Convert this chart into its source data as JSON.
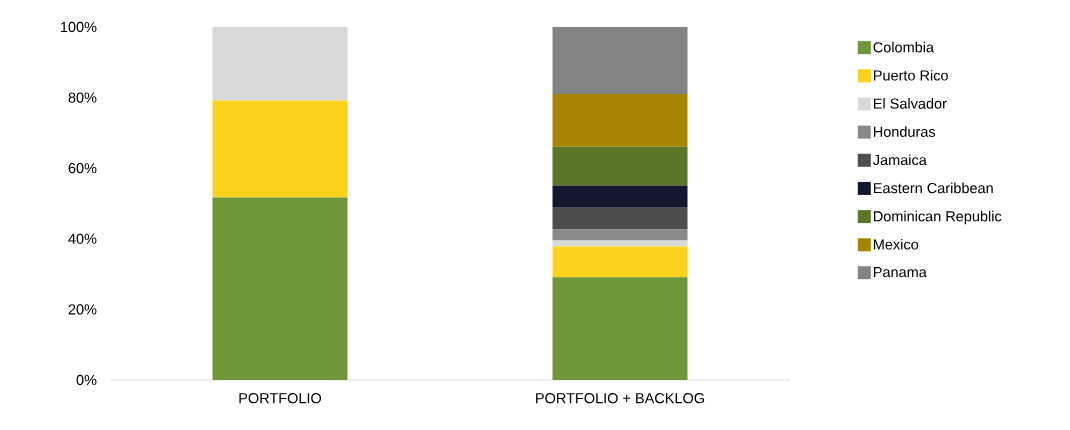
{
  "chart_data": {
    "type": "bar",
    "stacked": true,
    "categories": [
      "PORTFOLIO",
      "PORTFOLIO + BACKLOG"
    ],
    "series": [
      {
        "name": "Colombia",
        "color": "#70963a",
        "values": [
          51.7,
          29.1
        ]
      },
      {
        "name": "Puerto Rico",
        "color": "#fcd21c",
        "values": [
          27.5,
          8.7
        ]
      },
      {
        "name": "El Salvador",
        "color": "#d9d9d9",
        "values": [
          20.8,
          1.7
        ]
      },
      {
        "name": "Honduras",
        "color": "#898989",
        "values": [
          0,
          3.1
        ]
      },
      {
        "name": "Jamaica",
        "color": "#4d4d4d",
        "values": [
          0,
          6.2
        ]
      },
      {
        "name": "Eastern Caribbean",
        "color": "#14182e",
        "values": [
          0,
          6.3
        ]
      },
      {
        "name": "Dominican Republic",
        "color": "#5a7627",
        "values": [
          0,
          11.0
        ]
      },
      {
        "name": "Mexico",
        "color": "#a68500",
        "values": [
          0,
          14.9
        ]
      },
      {
        "name": "Panama",
        "color": "#838383",
        "values": [
          0,
          19.0
        ]
      }
    ],
    "ylim": [
      0,
      100
    ],
    "yticks": [
      {
        "value": 0,
        "label": "0%"
      },
      {
        "value": 20,
        "label": "20%"
      },
      {
        "value": 40,
        "label": "40%"
      },
      {
        "value": 60,
        "label": "60%"
      },
      {
        "value": 80,
        "label": "80%"
      },
      {
        "value": 100,
        "label": "100%"
      }
    ],
    "grid": false,
    "legend": "right"
  }
}
